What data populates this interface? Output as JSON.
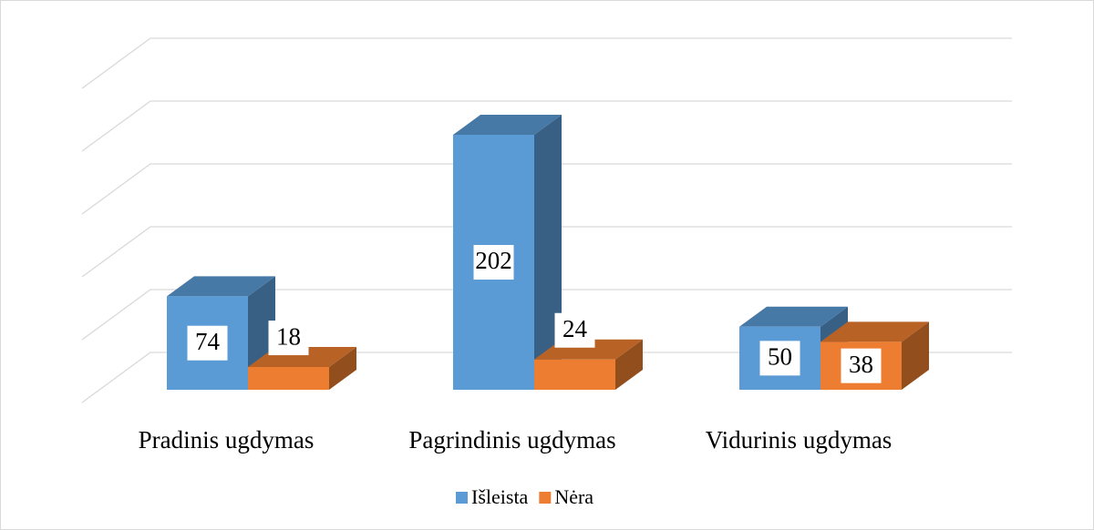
{
  "chart_data": {
    "type": "bar3d",
    "categories": [
      "Pradinis ugdymas",
      "Pagrindinis ugdymas",
      "Vidurinis ugdymas"
    ],
    "series": [
      {
        "name": "Išleista",
        "color": "#5b9bd5",
        "values": [
          74,
          202,
          50
        ]
      },
      {
        "name": "Nėra",
        "color": "#ed7d31",
        "values": [
          18,
          24,
          38
        ]
      }
    ],
    "ylim": [
      0,
      250
    ],
    "yticks": [
      0,
      50,
      100,
      150,
      200,
      250
    ],
    "grid": true,
    "legend": "bottom"
  }
}
